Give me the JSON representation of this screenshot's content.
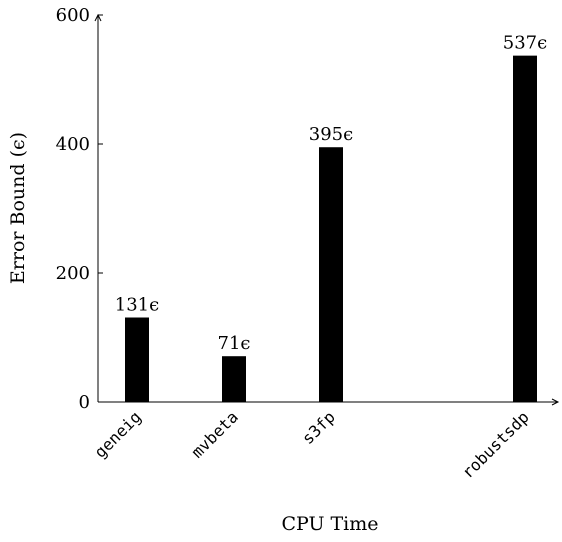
{
  "chart_data": {
    "type": "bar",
    "title": "",
    "xlabel": "CPU Time",
    "ylabel": "Error Bound (ϵ)",
    "ylim": [
      0,
      600
    ],
    "yticks": [
      0,
      200,
      400,
      600
    ],
    "grid": false,
    "bars": [
      {
        "label": "geneig",
        "x": 1,
        "value": 131,
        "data_label": "131ϵ"
      },
      {
        "label": "mvbeta",
        "x": 2,
        "value": 71,
        "data_label": "71ϵ"
      },
      {
        "label": "s3fp",
        "x": 3,
        "value": 395,
        "data_label": "395ϵ"
      },
      {
        "label": "robustsdp",
        "x": 5,
        "value": 537,
        "data_label": "537ϵ"
      }
    ],
    "bar_color": "#000000",
    "axis_color": "#000000"
  }
}
